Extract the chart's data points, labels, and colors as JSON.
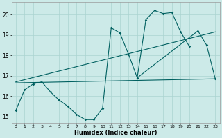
{
  "xlabel": "Humidex (Indice chaleur)",
  "background_color": "#cceae8",
  "grid_color": "#aad4d0",
  "line_color": "#006060",
  "xlim": [
    -0.5,
    23.5
  ],
  "ylim": [
    14.7,
    20.6
  ],
  "ytick_values": [
    15,
    16,
    17,
    18,
    19,
    20
  ],
  "series": [
    {
      "x": [
        0,
        1,
        2,
        3,
        4,
        5,
        6,
        7,
        8,
        9,
        10
      ],
      "y": [
        15.3,
        16.3,
        16.6,
        16.7,
        16.2,
        15.8,
        15.5,
        15.1,
        14.85,
        14.85,
        15.4
      ],
      "has_markers": true
    },
    {
      "x": [
        10,
        11,
        12,
        13,
        14,
        15,
        16,
        17,
        18,
        19,
        20
      ],
      "y": [
        15.4,
        19.35,
        19.1,
        18.05,
        16.9,
        19.75,
        20.2,
        20.05,
        20.1,
        19.15,
        18.45
      ],
      "has_markers": true
    },
    {
      "x": [
        0,
        23
      ],
      "y": [
        16.65,
        16.85
      ],
      "has_markers": false
    },
    {
      "x": [
        0,
        23
      ],
      "y": [
        16.7,
        19.15
      ],
      "has_markers": false
    },
    {
      "x": [
        14,
        21,
        22,
        23
      ],
      "y": [
        16.9,
        19.2,
        18.5,
        16.85
      ],
      "has_markers": true
    }
  ]
}
